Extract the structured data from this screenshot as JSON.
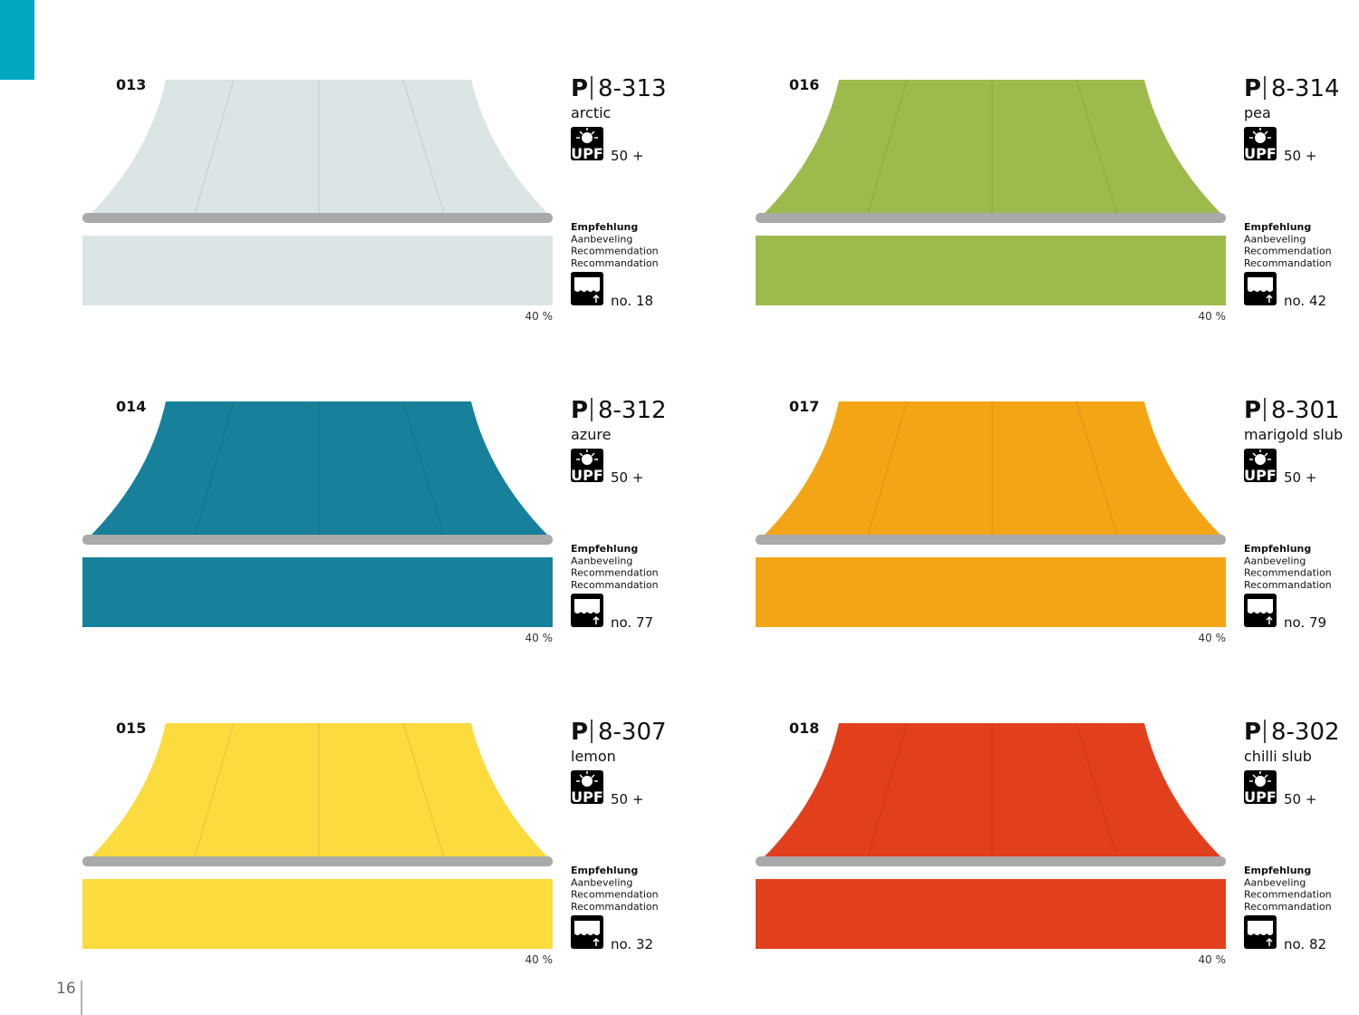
{
  "page_number": "16",
  "items": [
    {
      "number": "013",
      "prefix": "P",
      "code": "8-313",
      "name": "arctic",
      "upf_icon": "UPF",
      "upf": "50 +",
      "recommendation": [
        "Empfehlung",
        "Aanbeveling",
        "Recommendation",
        "Recommandation"
      ],
      "no": "no. 18",
      "percent": "40 %",
      "color": "#dbe5e5"
    },
    {
      "number": "016",
      "prefix": "P",
      "code": "8-314",
      "name": "pea",
      "upf_icon": "UPF",
      "upf": "50 +",
      "recommendation": [
        "Empfehlung",
        "Aanbeveling",
        "Recommendation",
        "Recommandation"
      ],
      "no": "no. 42",
      "percent": "40 %",
      "color": "#9dbb4c"
    },
    {
      "number": "014",
      "prefix": "P",
      "code": "8-312",
      "name": "azure",
      "upf_icon": "UPF",
      "upf": "50 +",
      "recommendation": [
        "Empfehlung",
        "Aanbeveling",
        "Recommendation",
        "Recommandation"
      ],
      "no": "no. 77",
      "percent": "40 %",
      "color": "#17809a"
    },
    {
      "number": "017",
      "prefix": "P",
      "code": "8-301",
      "name": "marigold slub",
      "upf_icon": "UPF",
      "upf": "50 +",
      "recommendation": [
        "Empfehlung",
        "Aanbeveling",
        "Recommendation",
        "Recommandation"
      ],
      "no": "no. 79",
      "percent": "40 %",
      "color": "#f3a515"
    },
    {
      "number": "015",
      "prefix": "P",
      "code": "8-307",
      "name": "lemon",
      "upf_icon": "UPF",
      "upf": "50 +",
      "recommendation": [
        "Empfehlung",
        "Aanbeveling",
        "Recommendation",
        "Recommandation"
      ],
      "no": "no. 32",
      "percent": "40 %",
      "color": "#fcdb3e"
    },
    {
      "number": "018",
      "prefix": "P",
      "code": "8-302",
      "name": "chilli slub",
      "upf_icon": "UPF",
      "upf": "50 +",
      "recommendation": [
        "Empfehlung",
        "Aanbeveling",
        "Recommendation",
        "Recommandation"
      ],
      "no": "no. 82",
      "percent": "40 %",
      "color": "#e23f1c"
    }
  ]
}
